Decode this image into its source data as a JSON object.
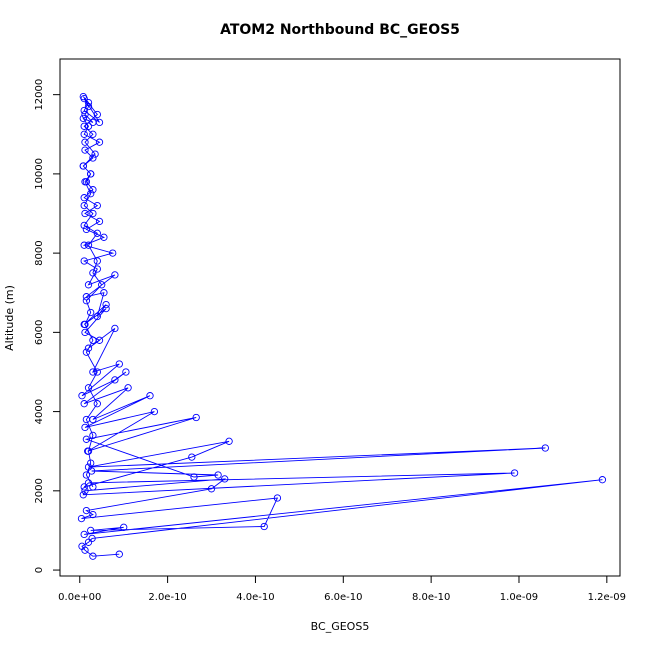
{
  "chart_data": {
    "type": "line",
    "title": "ATOM2 Northbound BC_GEOS5",
    "xlabel": "BC_GEOS5",
    "ylabel": "Altitude (m)",
    "xlim": [
      -4.5e-11,
      1.23e-09
    ],
    "ylim": [
      -150,
      12900
    ],
    "x_ticks": [
      0,
      2e-10,
      4e-10,
      6e-10,
      8e-10,
      1e-09,
      1.2e-09
    ],
    "x_tick_labels": [
      "0.0e+00",
      "2.0e-10",
      "4.0e-10",
      "6.0e-10",
      "8.0e-10",
      "1.0e-09",
      "1.2e-09"
    ],
    "y_ticks": [
      0,
      2000,
      4000,
      6000,
      8000,
      10000,
      12000
    ],
    "y_tick_labels": [
      "0",
      "2000",
      "4000",
      "6000",
      "8000",
      "10000",
      "12000"
    ],
    "grid": false,
    "color": "#0000ff",
    "series": [
      {
        "x": [
          9e-11,
          3e-11,
          1.2e-11,
          5e-12,
          2e-11,
          2.8e-11,
          1.19e-09,
          1e-11,
          1e-10,
          2.5e-11,
          4.2e-10,
          4.5e-10,
          4e-12,
          3e-11,
          1.5e-11,
          3e-10,
          3.3e-10,
          1.2e-11,
          8e-12,
          9.9e-10,
          2e-11,
          1e-11,
          2.55e-10,
          3.4e-10,
          2e-11,
          1.06e-09,
          2.7e-11,
          3.15e-10,
          2.6e-10,
          1.5e-11,
          2.65e-10,
          1.8e-11,
          1.7e-10,
          1.2e-11,
          1.6e-10,
          3e-11,
          1.1e-10,
          1e-11,
          1.05e-10,
          8e-11,
          5e-12,
          9e-11,
          3e-11,
          8e-11,
          2e-11,
          4.5e-11,
          1.2e-11,
          6e-11,
          1e-11,
          6e-11,
          4e-11,
          5.5e-11,
          1.5e-11,
          8e-11,
          2e-11,
          4e-11,
          1e-11,
          7.5e-11,
          1e-11,
          5.5e-11,
          1.5e-11,
          4.5e-11,
          1.2e-11,
          4e-11,
          1e-11,
          3e-11,
          1.5e-11,
          2.5e-11,
          8e-12,
          3e-11,
          1.2e-11,
          4.5e-11,
          1e-11,
          2e-11,
          8e-12,
          3e-11,
          1.2e-11,
          2e-11,
          1e-11,
          4.5e-11,
          1e-11,
          2e-11,
          8e-12,
          4e-11,
          1e-11,
          3e-11,
          1.2e-11,
          3.5e-11,
          8e-12,
          2.5e-11,
          1.2e-11,
          2.5e-11,
          1e-11,
          3e-11,
          1e-11,
          4e-11,
          2e-11,
          4e-11,
          3e-11,
          5e-11,
          1.5e-11,
          2.5e-11,
          1.2e-11,
          3e-11,
          1.5e-11,
          4e-11,
          2e-11,
          4e-11,
          1.5e-11,
          3e-11,
          2e-11,
          2.5e-11,
          1.5e-11,
          3e-11
        ],
        "y": [
          400,
          350,
          500,
          600,
          700,
          800,
          2280,
          900,
          1080,
          1000,
          1100,
          1820,
          1300,
          1400,
          1500,
          2050,
          2300,
          2000,
          1900,
          2450,
          2200,
          2100,
          2850,
          3250,
          2600,
          3080,
          2500,
          2400,
          2350,
          3300,
          3850,
          3000,
          4000,
          3600,
          4400,
          3800,
          4600,
          4200,
          5000,
          4800,
          4400,
          5200,
          5000,
          6100,
          5600,
          5800,
          6000,
          6600,
          6200,
          6700,
          6400,
          7000,
          6900,
          7450,
          7200,
          7600,
          7800,
          8000,
          8200,
          8400,
          8600,
          8800,
          9000,
          9200,
          9400,
          9600,
          9800,
          10000,
          10200,
          10400,
          10600,
          10800,
          11000,
          11200,
          11400,
          11300,
          11500,
          11700,
          11900,
          11300,
          11600,
          11800,
          11950,
          11500,
          11200,
          11000,
          10800,
          10500,
          10200,
          10000,
          9800,
          9500,
          9200,
          9000,
          8700,
          8500,
          8200,
          7800,
          7500,
          7200,
          6800,
          6500,
          6200,
          5800,
          5500,
          5000,
          4600,
          4200,
          3800,
          3400,
          3000,
          2700,
          2400,
          2100
        ]
      }
    ]
  }
}
